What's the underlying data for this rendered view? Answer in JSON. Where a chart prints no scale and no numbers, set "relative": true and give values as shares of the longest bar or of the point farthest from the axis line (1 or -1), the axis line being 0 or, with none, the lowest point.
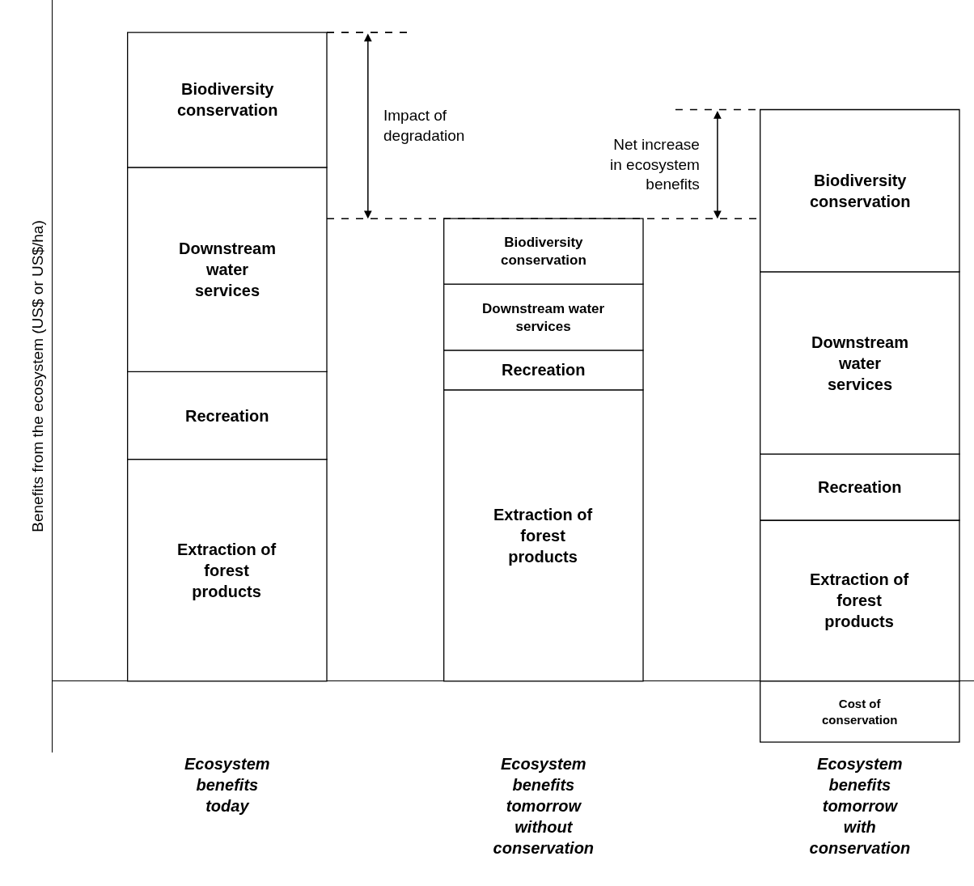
{
  "chart_data": {
    "type": "bar",
    "stacked": true,
    "relative": true,
    "legend": false,
    "ylabel": "Benefits from the ecosystem (US$ or US$/ha)",
    "categories": [
      "Ecosystem benefits today",
      "Ecosystem benefits tomorrow without conservation",
      "Ecosystem benefits tomorrow with conservation"
    ],
    "series": [
      {
        "name": "Extraction of forest products",
        "color": "#ffffff",
        "values": [
          0.342,
          0.449,
          0.248
        ]
      },
      {
        "name": "Recreation",
        "color": "#ffffff",
        "values": [
          0.135,
          0.061,
          0.102
        ]
      },
      {
        "name": "Downstream water services",
        "color": "#ffffff",
        "values": [
          0.315,
          0.102,
          0.281
        ]
      },
      {
        "name": "Biodiversity conservation",
        "color": "#ffffff",
        "values": [
          0.208,
          0.101,
          0.25
        ]
      },
      {
        "name": "Cost of conservation",
        "color": "#ffffff",
        "values": [
          null,
          null,
          -0.094
        ]
      }
    ],
    "ref_lines": [
      {
        "axis": "y",
        "value": 1.0,
        "line_style": "dashed"
      },
      {
        "axis": "y",
        "value": 0.713,
        "line_style": "dashed"
      },
      {
        "axis": "y",
        "value": 0.881,
        "line_style": "dashed"
      }
    ],
    "annotations": [
      "Impact of degradation",
      "Net increase in ecosystem benefits"
    ]
  }
}
